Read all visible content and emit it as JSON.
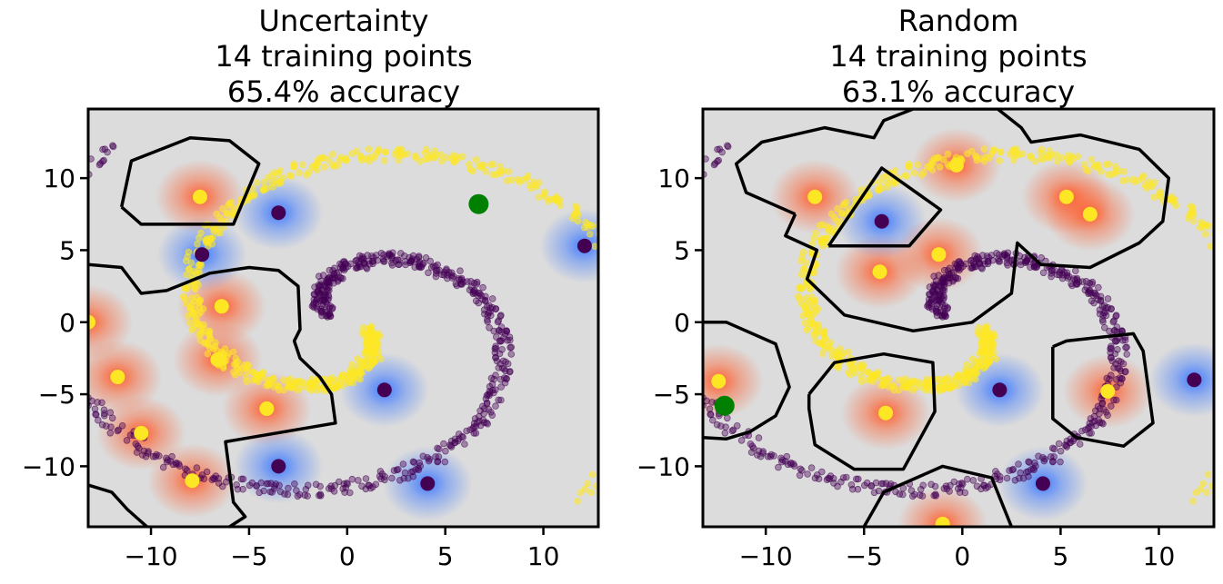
{
  "figure": {
    "colors": {
      "background": "#dcdcdc",
      "positive_class": "#fde725",
      "negative_class": "#440154",
      "positive_glow": "#ff5a28",
      "negative_glow": "#3c78ff",
      "query_point": "#008000"
    }
  },
  "chart_data": [
    {
      "type": "scatter",
      "panel_id": "left",
      "title_lines": [
        "Uncertainty",
        "14 training points",
        "65.4% accuracy"
      ],
      "xlim": [
        -13.2,
        12.8
      ],
      "ylim": [
        -14.2,
        14.8
      ],
      "xticks": [
        -10,
        -5,
        0,
        5,
        10
      ],
      "yticks": [
        -10,
        -5,
        0,
        5,
        10
      ],
      "xtick_labels": [
        "−10",
        "−5",
        "0",
        "5",
        "10"
      ],
      "ytick_labels": [
        "−10",
        "−5",
        "0",
        "5",
        "10"
      ],
      "labeled_points": {
        "positive": [
          [
            -7.5,
            8.7
          ],
          [
            -6.4,
            1.1
          ],
          [
            -6.6,
            -2.6
          ],
          [
            -4.1,
            -6.0
          ],
          [
            -11.7,
            -3.8
          ],
          [
            -10.5,
            -7.7
          ],
          [
            -7.9,
            -11.0
          ],
          [
            -13.2,
            0.0
          ]
        ],
        "negative": [
          [
            -3.5,
            7.6
          ],
          [
            -7.4,
            4.7
          ],
          [
            1.9,
            -4.7
          ],
          [
            -3.5,
            -10.0
          ],
          [
            4.1,
            -11.2
          ],
          [
            12.1,
            5.3
          ]
        ]
      },
      "query_point": [
        6.7,
        8.2
      ],
      "boundaries": [
        {
          "name": "upper-left-region",
          "points": [
            [
              -11.5,
              8.0
            ],
            [
              -11.0,
              11.2
            ],
            [
              -8.0,
              12.8
            ],
            [
              -6.0,
              12.6
            ],
            [
              -4.5,
              11.0
            ],
            [
              -5.8,
              6.8
            ],
            [
              -10.5,
              6.8
            ],
            [
              -11.5,
              8.0
            ]
          ]
        },
        {
          "name": "left-region",
          "points": [
            [
              -13.2,
              4.0
            ],
            [
              -11.5,
              3.8
            ],
            [
              -10.5,
              2.0
            ],
            [
              -9.2,
              2.2
            ],
            [
              -7.0,
              3.4
            ],
            [
              -5.0,
              3.8
            ],
            [
              -3.5,
              3.6
            ],
            [
              -2.5,
              2.5
            ],
            [
              -2.4,
              -0.5
            ],
            [
              -2.7,
              -1.3
            ],
            [
              -2.4,
              -2.5
            ],
            [
              -1.4,
              -3.8
            ],
            [
              -0.8,
              -5.0
            ],
            [
              -0.6,
              -7.0
            ],
            [
              -6.2,
              -8.3
            ],
            [
              -5.8,
              -12.5
            ],
            [
              -5.2,
              -13.5
            ],
            [
              -6.0,
              -14.2
            ]
          ]
        },
        {
          "name": "bottom-left-corner",
          "points": [
            [
              -13.2,
              -11.3
            ],
            [
              -12.0,
              -11.8
            ],
            [
              -11.2,
              -13.0
            ],
            [
              -10.2,
              -14.2
            ]
          ]
        }
      ]
    },
    {
      "type": "scatter",
      "panel_id": "right",
      "title_lines": [
        "Random",
        "14 training points",
        "63.1% accuracy"
      ],
      "xlim": [
        -13.2,
        12.8
      ],
      "ylim": [
        -14.2,
        14.8
      ],
      "xticks": [
        -10,
        -5,
        0,
        5,
        10
      ],
      "yticks": [
        -10,
        -5,
        0,
        5,
        10
      ],
      "xtick_labels": [
        "−10",
        "−5",
        "0",
        "5",
        "10"
      ],
      "ytick_labels": [
        "−10",
        "−5",
        "0",
        "5",
        "10"
      ],
      "labeled_points": {
        "positive": [
          [
            -7.5,
            8.7
          ],
          [
            -0.3,
            10.9
          ],
          [
            5.3,
            8.7
          ],
          [
            6.5,
            7.5
          ],
          [
            -1.2,
            4.7
          ],
          [
            -4.2,
            3.5
          ],
          [
            -12.4,
            -4.1
          ],
          [
            -3.9,
            -6.3
          ],
          [
            7.4,
            -4.8
          ],
          [
            -1.0,
            -14.0
          ]
        ],
        "negative": [
          [
            -4.1,
            7.0
          ],
          [
            1.9,
            -4.7
          ],
          [
            4.1,
            -11.2
          ],
          [
            11.8,
            -4.0
          ]
        ]
      },
      "query_point": [
        -12.1,
        -5.8
      ],
      "boundaries": [
        {
          "name": "upper-blob-region",
          "points": [
            [
              -8.5,
              7.5
            ],
            [
              -11.0,
              9.0
            ],
            [
              -11.5,
              11.0
            ],
            [
              -10.2,
              12.5
            ],
            [
              -7.0,
              13.5
            ],
            [
              -4.5,
              12.8
            ],
            [
              -4.0,
              14.0
            ],
            [
              -2.5,
              14.8
            ],
            [
              1.8,
              14.8
            ],
            [
              3.0,
              13.5
            ],
            [
              3.5,
              12.5
            ],
            [
              6.0,
              13.0
            ],
            [
              9.0,
              12.0
            ],
            [
              10.5,
              10.0
            ],
            [
              10.2,
              7.0
            ],
            [
              9.0,
              5.5
            ],
            [
              6.5,
              3.8
            ],
            [
              4.0,
              4.0
            ],
            [
              2.8,
              5.5
            ],
            [
              2.5,
              2.0
            ],
            [
              0.5,
              0.0
            ],
            [
              -2.5,
              -0.6
            ],
            [
              -6.0,
              0.5
            ],
            [
              -7.9,
              3.0
            ],
            [
              -7.4,
              5.0
            ],
            [
              -9.0,
              6.0
            ],
            [
              -8.5,
              7.5
            ]
          ]
        },
        {
          "name": "inner-triangle-region",
          "points": [
            [
              -6.8,
              5.3
            ],
            [
              -4.1,
              10.7
            ],
            [
              -1.1,
              7.8
            ],
            [
              -2.7,
              5.3
            ],
            [
              -6.8,
              5.3
            ]
          ]
        },
        {
          "name": "far-left-region",
          "points": [
            [
              -13.2,
              0.0
            ],
            [
              -12.0,
              0.0
            ],
            [
              -9.5,
              -1.5
            ],
            [
              -8.8,
              -4.5
            ],
            [
              -9.5,
              -6.5
            ],
            [
              -10.8,
              -7.6
            ],
            [
              -12.0,
              -8.1
            ],
            [
              -13.2,
              -8.0
            ]
          ]
        },
        {
          "name": "lower-middle-region",
          "points": [
            [
              -7.8,
              -5.0
            ],
            [
              -6.5,
              -2.8
            ],
            [
              -4.0,
              -2.2
            ],
            [
              -1.5,
              -2.8
            ],
            [
              -1.4,
              -6.2
            ],
            [
              -3.0,
              -10.2
            ],
            [
              -5.5,
              -10.2
            ],
            [
              -7.5,
              -8.5
            ],
            [
              -7.8,
              -6.0
            ],
            [
              -7.8,
              -5.0
            ]
          ]
        },
        {
          "name": "right-square-region",
          "points": [
            [
              4.6,
              -1.7
            ],
            [
              5.3,
              -1.3
            ],
            [
              8.7,
              -0.8
            ],
            [
              9.2,
              -2.0
            ],
            [
              9.7,
              -7.0
            ],
            [
              8.2,
              -8.6
            ],
            [
              5.8,
              -8.0
            ],
            [
              4.6,
              -6.7
            ],
            [
              4.6,
              -1.7
            ]
          ]
        },
        {
          "name": "bottom-region",
          "points": [
            [
              -5.0,
              -14.2
            ],
            [
              -4.0,
              -11.8
            ],
            [
              -1.0,
              -10.0
            ],
            [
              1.5,
              -10.8
            ],
            [
              2.5,
              -14.2
            ]
          ]
        }
      ]
    }
  ]
}
